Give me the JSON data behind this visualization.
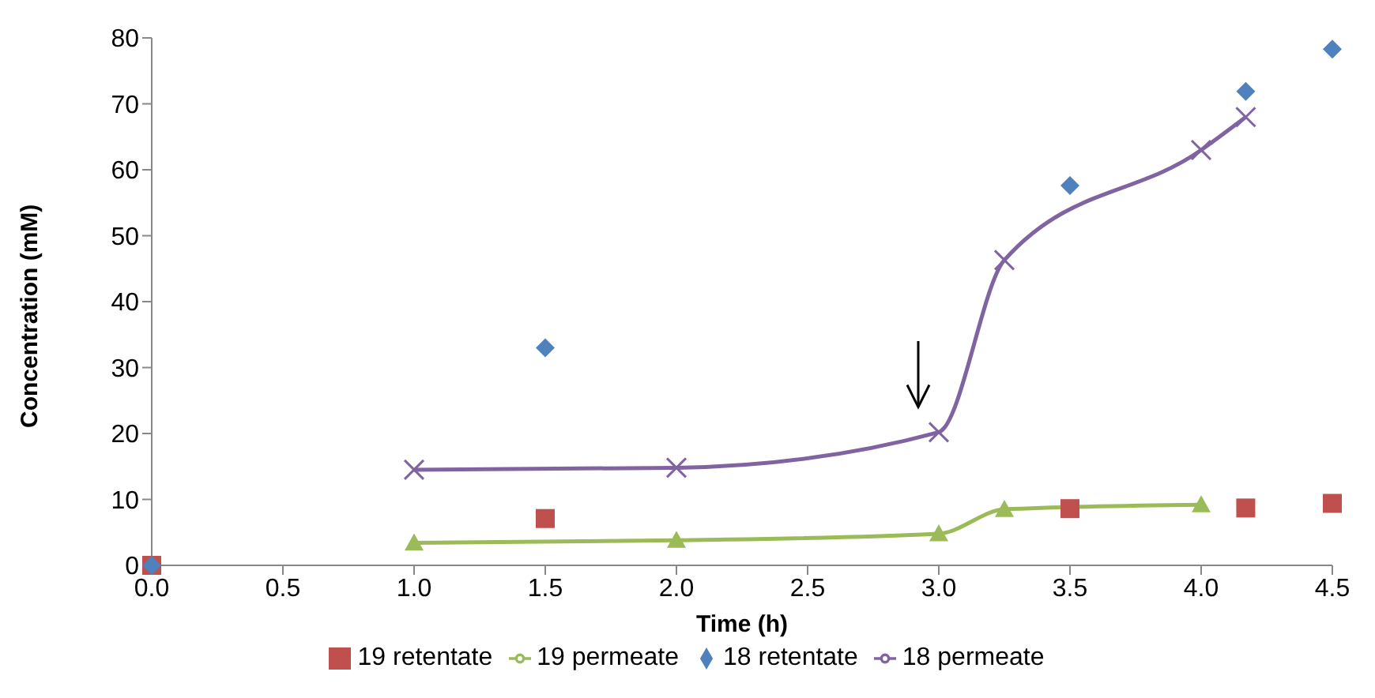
{
  "chart_data": {
    "type": "line",
    "xlabel": "Time (h)",
    "ylabel": "Concentration (mM)",
    "xlim": [
      0,
      4.5
    ],
    "xticks": [
      {
        "value": 0,
        "label": "0.0"
      },
      {
        "value": 0.5,
        "label": "0.5"
      },
      {
        "value": 1,
        "label": "1.0"
      },
      {
        "value": 1.5,
        "label": "1.5"
      },
      {
        "value": 2,
        "label": "2.0"
      },
      {
        "value": 2.5,
        "label": "2.5"
      },
      {
        "value": 3,
        "label": "3.0"
      },
      {
        "value": 3.5,
        "label": "3.5"
      },
      {
        "value": 4,
        "label": "4.0"
      },
      {
        "value": 4.5,
        "label": "4.5"
      }
    ],
    "ylim": [
      0,
      80
    ],
    "yticks": [
      0,
      10,
      20,
      30,
      40,
      50,
      60,
      70,
      80
    ],
    "legend": "bottom",
    "grid": false,
    "series": [
      {
        "name": "19 retentate",
        "type": "scatter",
        "marker": "square",
        "color": "#c0504d",
        "x": [
          0,
          1.5,
          3.5,
          4.17,
          4.5
        ],
        "values": [
          0,
          7.1,
          8.6,
          8.7,
          9.4
        ]
      },
      {
        "name": "19 permeate",
        "marker": "triangle",
        "color": "#9bbb59",
        "x": [
          1,
          2,
          3,
          3.25,
          4
        ],
        "values": [
          3.4,
          3.8,
          4.8,
          8.5,
          9.2
        ]
      },
      {
        "name": "18 retentate",
        "type": "scatter",
        "marker": "diamond",
        "color": "#4f81bd",
        "x": [
          0,
          1.5,
          3.5,
          4.17,
          4.5
        ],
        "values": [
          0,
          33,
          57.6,
          71.9,
          78.3
        ]
      },
      {
        "name": "18 permeate",
        "marker": "cross",
        "color": "#8064a2",
        "x": [
          1,
          2,
          3,
          3.25,
          4,
          4.17
        ],
        "values": [
          14.5,
          14.8,
          20.2,
          46.3,
          63,
          68
        ]
      }
    ]
  }
}
